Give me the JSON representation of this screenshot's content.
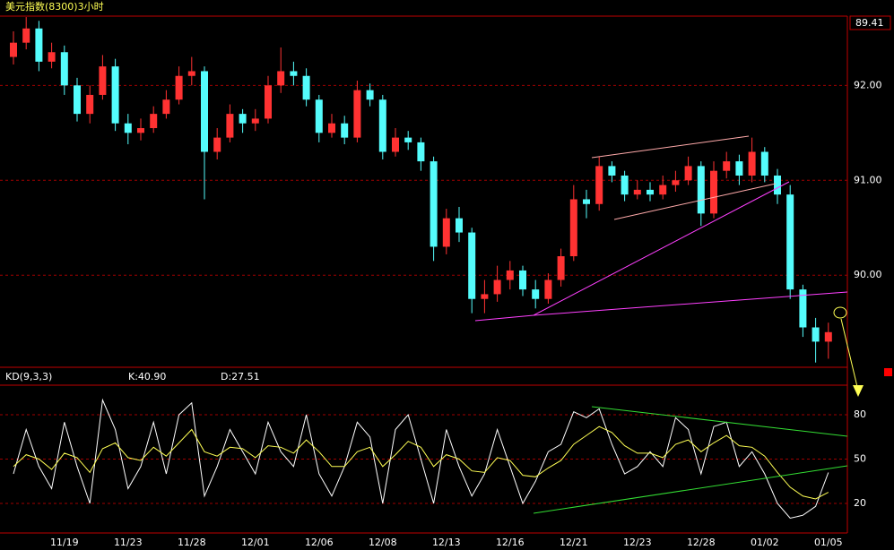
{
  "chart_data": [
    {
      "type": "candlestick",
      "title": "美元指数(8300)3小时",
      "last_price_label": "89.41",
      "categories": [
        null,
        null,
        null,
        null,
        "11/19",
        null,
        null,
        null,
        null,
        "11/23",
        null,
        null,
        null,
        null,
        "11/28",
        null,
        null,
        null,
        null,
        "12/01",
        null,
        null,
        null,
        null,
        "12/06",
        null,
        null,
        null,
        null,
        "12/08",
        null,
        null,
        null,
        null,
        "12/13",
        null,
        null,
        null,
        null,
        "12/16",
        null,
        null,
        null,
        null,
        "12/21",
        null,
        null,
        null,
        null,
        "12/23",
        null,
        null,
        null,
        null,
        "12/28",
        null,
        null,
        null,
        null,
        "01/02",
        null,
        null,
        null,
        null,
        "01/05"
      ],
      "open": [
        92.3,
        92.45,
        92.6,
        92.25,
        92.35,
        92.0,
        91.7,
        91.9,
        92.2,
        91.6,
        91.5,
        91.55,
        91.7,
        91.85,
        92.1,
        92.15,
        91.3,
        91.45,
        91.7,
        91.6,
        91.65,
        92.0,
        92.15,
        92.1,
        91.85,
        91.5,
        91.6,
        91.45,
        91.95,
        91.85,
        91.3,
        91.45,
        91.4,
        91.2,
        90.3,
        90.6,
        90.45,
        89.75,
        89.8,
        89.95,
        90.05,
        89.85,
        89.75,
        89.95,
        90.2,
        90.8,
        90.75,
        91.15,
        91.05,
        90.85,
        90.9,
        90.85,
        90.95,
        91.0,
        91.15,
        90.65,
        91.1,
        91.2,
        91.05,
        91.3,
        91.05,
        90.85,
        89.85,
        89.45,
        89.3
      ],
      "high": [
        92.57,
        92.72,
        92.68,
        92.45,
        92.42,
        92.08,
        92.0,
        92.32,
        92.28,
        91.7,
        91.65,
        91.78,
        91.95,
        92.2,
        92.3,
        92.2,
        91.55,
        91.8,
        91.75,
        91.75,
        92.1,
        92.4,
        92.25,
        92.18,
        91.9,
        91.7,
        91.68,
        92.05,
        92.02,
        91.9,
        91.55,
        91.52,
        91.45,
        91.25,
        90.7,
        90.72,
        90.5,
        89.95,
        90.1,
        90.15,
        90.1,
        89.95,
        90.02,
        90.28,
        90.95,
        90.9,
        91.25,
        91.2,
        91.1,
        91.0,
        90.98,
        91.05,
        91.1,
        91.25,
        91.2,
        91.2,
        91.3,
        91.27,
        91.45,
        91.35,
        91.12,
        90.95,
        89.9,
        89.55,
        89.5
      ],
      "low": [
        92.22,
        92.38,
        92.15,
        92.18,
        91.9,
        91.62,
        91.6,
        91.85,
        91.52,
        91.38,
        91.42,
        91.5,
        91.65,
        91.8,
        92.0,
        90.8,
        91.22,
        91.4,
        91.5,
        91.52,
        91.6,
        91.92,
        92.0,
        91.78,
        91.4,
        91.45,
        91.38,
        91.4,
        91.78,
        91.22,
        91.25,
        91.32,
        91.1,
        90.15,
        90.22,
        90.35,
        89.6,
        89.6,
        89.72,
        89.85,
        89.78,
        89.65,
        89.7,
        89.88,
        90.15,
        90.6,
        90.68,
        90.98,
        90.78,
        90.8,
        90.78,
        90.8,
        90.88,
        90.95,
        90.52,
        90.6,
        91.02,
        90.95,
        90.98,
        90.98,
        90.75,
        89.75,
        89.35,
        89.08,
        89.12
      ],
      "close": [
        92.45,
        92.6,
        92.25,
        92.35,
        92.0,
        91.7,
        91.9,
        92.2,
        91.6,
        91.5,
        91.55,
        91.7,
        91.85,
        92.1,
        92.15,
        91.3,
        91.45,
        91.7,
        91.6,
        91.65,
        92.0,
        92.15,
        92.1,
        91.85,
        91.5,
        91.6,
        91.45,
        91.95,
        91.85,
        91.3,
        91.45,
        91.4,
        91.2,
        90.3,
        90.6,
        90.45,
        89.75,
        89.8,
        89.95,
        90.05,
        89.85,
        89.75,
        89.95,
        90.2,
        90.8,
        90.75,
        91.15,
        91.05,
        90.85,
        90.9,
        90.85,
        90.95,
        91.0,
        91.15,
        90.65,
        91.1,
        91.2,
        91.05,
        91.3,
        91.05,
        90.85,
        89.85,
        89.45,
        89.3,
        89.4
      ],
      "up_color": "#ff3232",
      "down_color": "#54fcfc",
      "ylim": [
        89.03,
        92.73
      ],
      "yticks": [
        {
          "value": 92,
          "label": "92.00"
        },
        {
          "value": 91,
          "label": "91.00"
        },
        {
          "value": 90,
          "label": "90.00"
        }
      ],
      "grid": true
    },
    {
      "type": "line",
      "title": "KD(9,3,3)",
      "legend_texts": [
        "K:40.90",
        "D:27.51"
      ],
      "series": [
        {
          "color": "#ffffff",
          "values": [
            40,
            70,
            45,
            30,
            75,
            45,
            20,
            90,
            70,
            30,
            45,
            75,
            40,
            80,
            88,
            25,
            45,
            70,
            55,
            40,
            75,
            55,
            45,
            80,
            40,
            25,
            45,
            75,
            65,
            20,
            70,
            80,
            50,
            20,
            70,
            45,
            25,
            40,
            70,
            45,
            20,
            35,
            55,
            60,
            82,
            78,
            84,
            60,
            40,
            45,
            55,
            45,
            78,
            70,
            40,
            72,
            75,
            45,
            55,
            40,
            20,
            10,
            12,
            18,
            40.9
          ]
        },
        {
          "color": "#ffff54",
          "values": [
            45,
            53,
            50,
            43,
            54,
            51,
            41,
            57,
            61,
            51,
            49,
            58,
            52,
            61,
            70,
            55,
            52,
            58,
            57,
            51,
            59,
            58,
            54,
            63,
            55,
            45,
            45,
            55,
            58,
            45,
            53,
            62,
            58,
            45,
            53,
            50,
            42,
            41,
            51,
            49,
            39,
            38,
            44,
            49,
            60,
            66,
            72,
            68,
            59,
            54,
            54,
            51,
            60,
            63,
            55,
            61,
            66,
            59,
            58,
            52,
            41,
            31,
            25,
            23,
            27.51
          ]
        }
      ],
      "ylim": [
        0,
        100
      ],
      "yticks": [
        80,
        50,
        20
      ],
      "grid": true
    }
  ]
}
